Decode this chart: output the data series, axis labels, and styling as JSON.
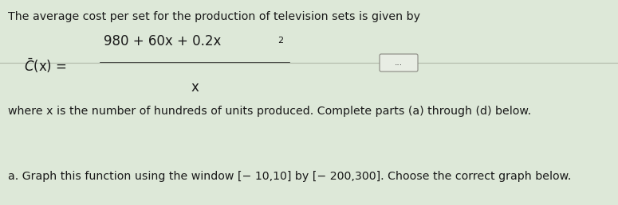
{
  "line1": "The average cost per set for the production of television sets is given by",
  "formula_lhs": "$\\bar{C}$(x) = ",
  "formula_numerator": "980 + 60x + 0.2x",
  "formula_superscript": "2",
  "formula_denominator": "x",
  "line3": "where x is the number of hundreds of units produced. Complete parts (a) through (d) below.",
  "dots_label": "...",
  "line_a": "a. Graph this function using the window [− 10,10] by [− 200,300]. Choose the correct graph below.",
  "bg_color": "#dde8d8",
  "text_color": "#1a1a1a",
  "divider_color": "#b0b8a8",
  "dot_box_color": "#e8ede4",
  "dot_box_edge": "#888880"
}
